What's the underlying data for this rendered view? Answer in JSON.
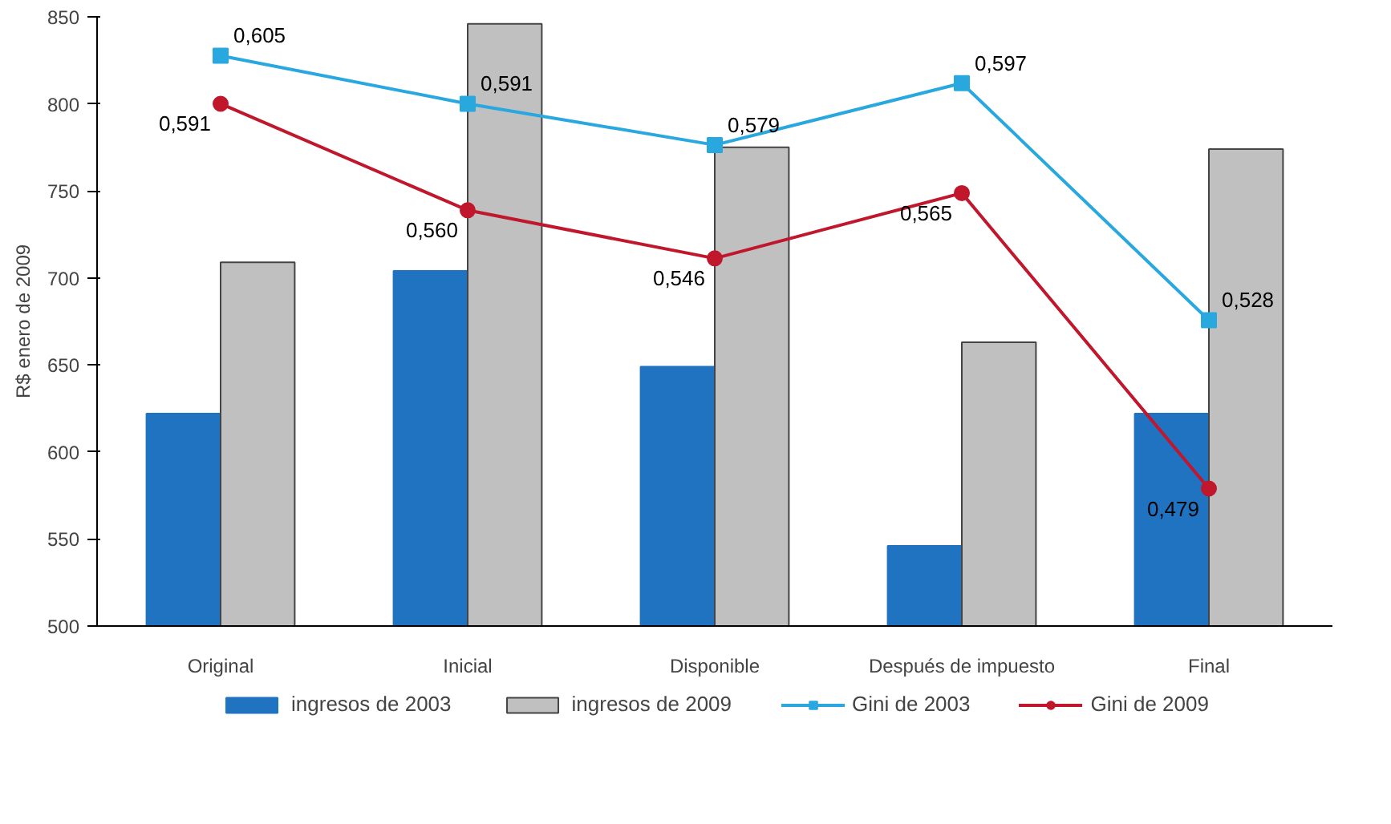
{
  "chart_data": {
    "type": "bar",
    "ylabel": "R$ enero de 2009",
    "categories": [
      "Original",
      "Inicial",
      "Disponible",
      "Después de impuesto",
      "Final"
    ],
    "ylim": [
      500,
      850
    ],
    "yticks": [
      500,
      550,
      600,
      650,
      700,
      750,
      800,
      850
    ],
    "y2lim": [
      0.439,
      0.6163
    ],
    "grid": false,
    "legend": "bottom",
    "series": [
      {
        "name": "ingresos de 2003",
        "color": "#1f73c0",
        "values": [
          622,
          704,
          649,
          546,
          622
        ]
      },
      {
        "name": "ingresos de 2009",
        "color": "#c0c0c0",
        "values": [
          709,
          846,
          775,
          663,
          774
        ]
      },
      {
        "name": "Gini de 2003",
        "type": "line",
        "axis": "y2",
        "marker": "square",
        "color": "#29a8e0",
        "values": [
          0.605,
          0.591,
          0.579,
          0.597,
          0.528
        ],
        "value_labels": [
          "0,605",
          "0,591",
          "0,579",
          "0,597",
          "0,528"
        ]
      },
      {
        "name": "Gini de 2009",
        "type": "line",
        "axis": "y2",
        "marker": "circle",
        "color": "#c0172c",
        "values": [
          0.591,
          0.56,
          0.546,
          0.565,
          0.479
        ],
        "value_labels": [
          "0,591",
          "0,560",
          "0,546",
          "0,565",
          "0,479"
        ]
      }
    ]
  }
}
